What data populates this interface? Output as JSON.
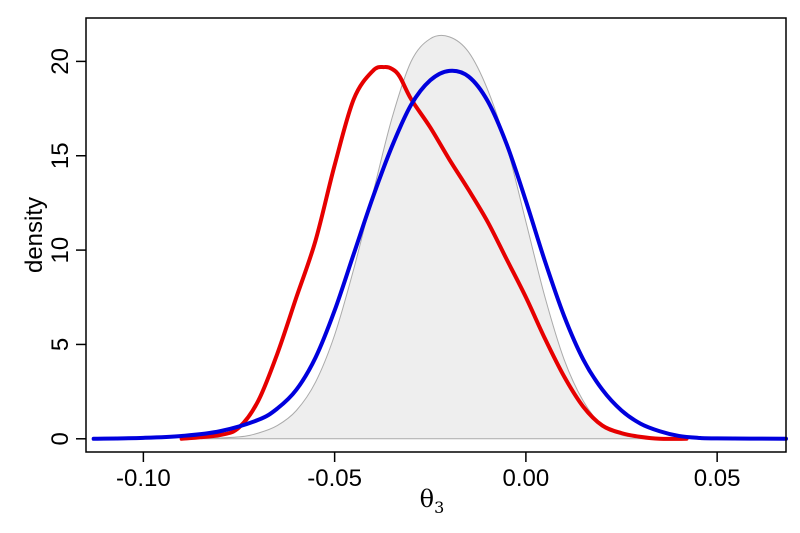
{
  "chart_data": {
    "type": "area",
    "xlabel": "θ",
    "xlabel_subscript": "3",
    "ylabel": "density",
    "xlim": [
      -0.115,
      0.068
    ],
    "ylim": [
      -0.7,
      22.3
    ],
    "xticks": [
      -0.1,
      -0.05,
      0.0,
      0.05
    ],
    "xtick_labels": [
      "-0.10",
      "-0.05",
      "0.00",
      "0.05"
    ],
    "yticks": [
      0,
      5,
      10,
      15,
      20
    ],
    "ytick_labels": [
      "0",
      "5",
      "10",
      "15",
      "20"
    ],
    "grid": false,
    "series": [
      {
        "kind": "filled",
        "color": "#eeeeee",
        "stroke": "#aaaaaa",
        "x": [
          -0.085,
          -0.075,
          -0.07,
          -0.065,
          -0.06,
          -0.055,
          -0.05,
          -0.045,
          -0.04,
          -0.035,
          -0.03,
          -0.025,
          -0.02,
          -0.015,
          -0.01,
          -0.005,
          0.0,
          0.005,
          0.01,
          0.015,
          0.02,
          0.025,
          0.03,
          0.035
        ],
        "values": [
          0.0,
          0.1,
          0.3,
          0.7,
          1.5,
          3.0,
          5.5,
          9.0,
          13.0,
          17.0,
          20.0,
          21.2,
          21.3,
          20.5,
          18.5,
          15.5,
          11.5,
          7.5,
          4.2,
          2.0,
          0.7,
          0.2,
          0.05,
          0.0
        ]
      },
      {
        "kind": "line",
        "color": "#e60000",
        "x": [
          -0.09,
          -0.08,
          -0.075,
          -0.07,
          -0.065,
          -0.06,
          -0.055,
          -0.05,
          -0.045,
          -0.04,
          -0.037,
          -0.035,
          -0.033,
          -0.03,
          -0.025,
          -0.02,
          -0.015,
          -0.01,
          -0.005,
          0.0,
          0.005,
          0.01,
          0.015,
          0.02,
          0.025,
          0.03,
          0.035,
          0.042
        ],
        "values": [
          0.0,
          0.2,
          0.6,
          2.0,
          4.5,
          7.5,
          10.5,
          14.5,
          18.0,
          19.5,
          19.7,
          19.6,
          19.2,
          18.0,
          16.5,
          14.8,
          13.2,
          11.5,
          9.5,
          7.5,
          5.3,
          3.3,
          1.7,
          0.7,
          0.3,
          0.1,
          0.0,
          0.0
        ]
      },
      {
        "kind": "line",
        "color": "#0000dd",
        "x": [
          -0.113,
          -0.1,
          -0.09,
          -0.08,
          -0.07,
          -0.065,
          -0.06,
          -0.055,
          -0.05,
          -0.045,
          -0.04,
          -0.035,
          -0.03,
          -0.025,
          -0.02,
          -0.015,
          -0.01,
          -0.005,
          0.0,
          0.005,
          0.01,
          0.015,
          0.02,
          0.025,
          0.03,
          0.035,
          0.04,
          0.045,
          0.05,
          0.068
        ],
        "values": [
          0.0,
          0.05,
          0.15,
          0.4,
          1.0,
          1.6,
          2.6,
          4.3,
          6.8,
          9.8,
          12.8,
          15.5,
          17.7,
          19.0,
          19.5,
          19.2,
          17.9,
          15.6,
          12.6,
          9.4,
          6.5,
          4.2,
          2.6,
          1.5,
          0.8,
          0.4,
          0.15,
          0.05,
          0.02,
          0.0
        ]
      }
    ]
  }
}
